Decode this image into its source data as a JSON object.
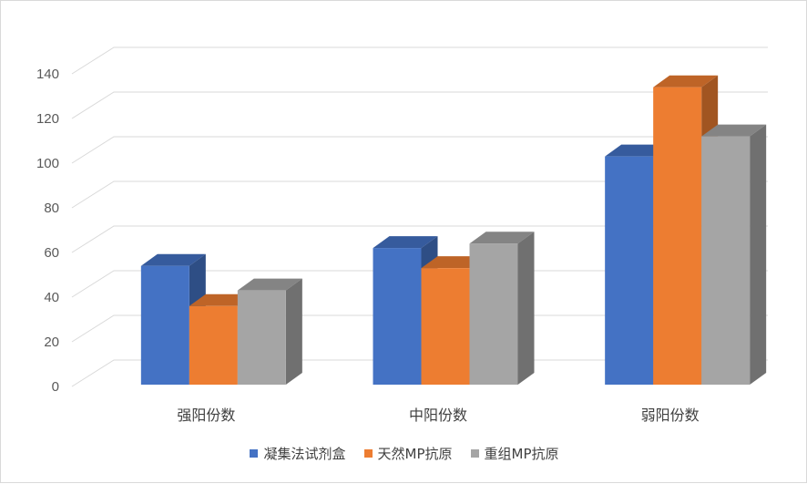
{
  "chart_data": {
    "type": "bar",
    "title": "",
    "xlabel": "",
    "ylabel": "",
    "categories": [
      "强阳份数",
      "中阳份数",
      "弱阳份数"
    ],
    "series": [
      {
        "name": "凝集法试剂盒",
        "values": [
          54,
          62,
          103
        ],
        "color": "#4472c4"
      },
      {
        "name": "天然MP抗原",
        "values": [
          36,
          53,
          134
        ],
        "color": "#ed7d31"
      },
      {
        "name": "重组MP抗原",
        "values": [
          43,
          64,
          112
        ],
        "color": "#a5a5a5"
      }
    ],
    "ylim": [
      0,
      140
    ],
    "yticks": [
      0,
      20,
      40,
      60,
      80,
      100,
      120,
      140
    ],
    "grid": true,
    "legend_position": "bottom",
    "style": "3d-clustered-column"
  }
}
